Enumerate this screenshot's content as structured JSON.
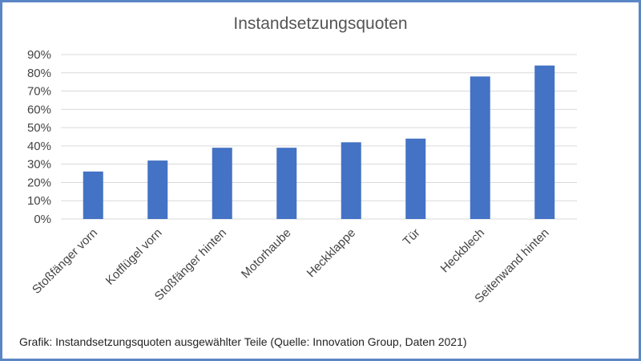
{
  "caption": "Grafik: Instandsetzungsquoten ausgewählter Teile (Quelle: Innovation Group, Daten 2021)",
  "colors": {
    "bar": "#4472c4",
    "grid": "#d9d9d9",
    "frame": "#5b86c5"
  },
  "chart_data": {
    "type": "bar",
    "title": "Instandsetzungsquoten",
    "xlabel": "",
    "ylabel": "",
    "categories": [
      "Stoßfänger vorn",
      "Kotflügel vorn",
      "Stoßfänger hinten",
      "Motorhaube",
      "Heckklappe",
      "Tür",
      "Heckblech",
      "Seitenwand hinten"
    ],
    "values": [
      26,
      32,
      39,
      39,
      42,
      44,
      78,
      84
    ],
    "ylim": [
      0,
      90
    ],
    "yticks": [
      "0%",
      "10%",
      "20%",
      "30%",
      "40%",
      "50%",
      "60%",
      "70%",
      "80%",
      "90%"
    ],
    "grid": true,
    "legend": "none"
  }
}
